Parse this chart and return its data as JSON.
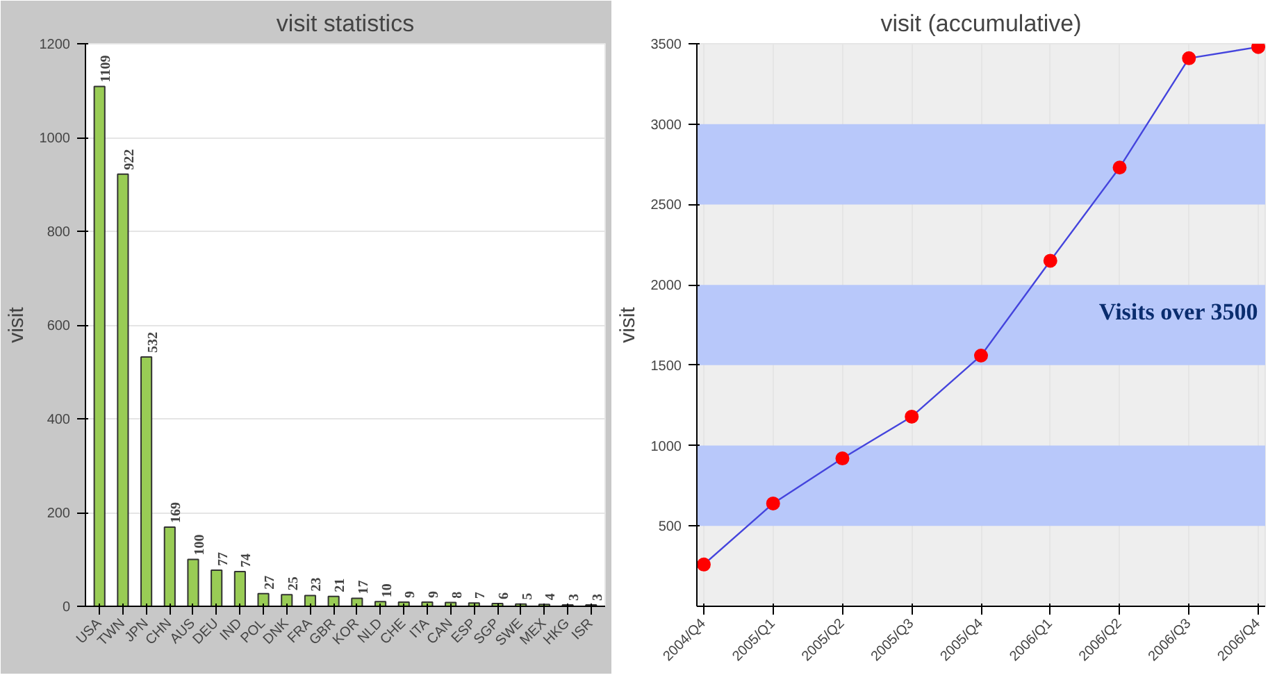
{
  "chart_data": [
    {
      "type": "bar",
      "title": "visit statistics",
      "ylabel": "visit",
      "categories": [
        "USA",
        "TWN",
        "JPN",
        "CHN",
        "AUS",
        "DEU",
        "IND",
        "POL",
        "DNK",
        "FRA",
        "GBR",
        "KOR",
        "NLD",
        "CHE",
        "ITA",
        "CAN",
        "ESP",
        "SGP",
        "SWE",
        "MEX",
        "HKG",
        "ISR"
      ],
      "values": [
        1109,
        922,
        532,
        169,
        100,
        77,
        74,
        27,
        25,
        23,
        21,
        17,
        10,
        9,
        9,
        8,
        7,
        6,
        5,
        4,
        3,
        3
      ],
      "color": "#99cc55",
      "ylim": [
        0,
        1200
      ],
      "yticks": [
        0,
        200,
        400,
        600,
        800,
        1000,
        1200
      ],
      "grid": "y",
      "data_labels": true
    },
    {
      "type": "line",
      "title": "visit (accumulative)",
      "ylabel": "visit",
      "categories": [
        "2004/Q4",
        "2005/Q1",
        "2005/Q2",
        "2005/Q3",
        "2005/Q4",
        "2006/Q1",
        "2006/Q2",
        "2006/Q3",
        "2006/Q4"
      ],
      "values": [
        260,
        640,
        920,
        1180,
        1560,
        2150,
        2730,
        3410,
        3480
      ],
      "color": "#4444dd",
      "marker": "circle",
      "ylim": [
        0,
        3500
      ],
      "yticks": [
        500,
        1000,
        1500,
        2000,
        2500,
        3000,
        3500
      ],
      "grid": "x",
      "bands": [
        {
          "axis": "y",
          "from": 500,
          "to": 1000,
          "color": "#b8c8fa"
        },
        {
          "axis": "y",
          "from": 1500,
          "to": 2000,
          "color": "#b8c8fa"
        },
        {
          "axis": "y",
          "from": 2500,
          "to": 3000,
          "color": "#b8c8fa"
        }
      ],
      "annotations": [
        "Visits over 3500"
      ]
    }
  ]
}
